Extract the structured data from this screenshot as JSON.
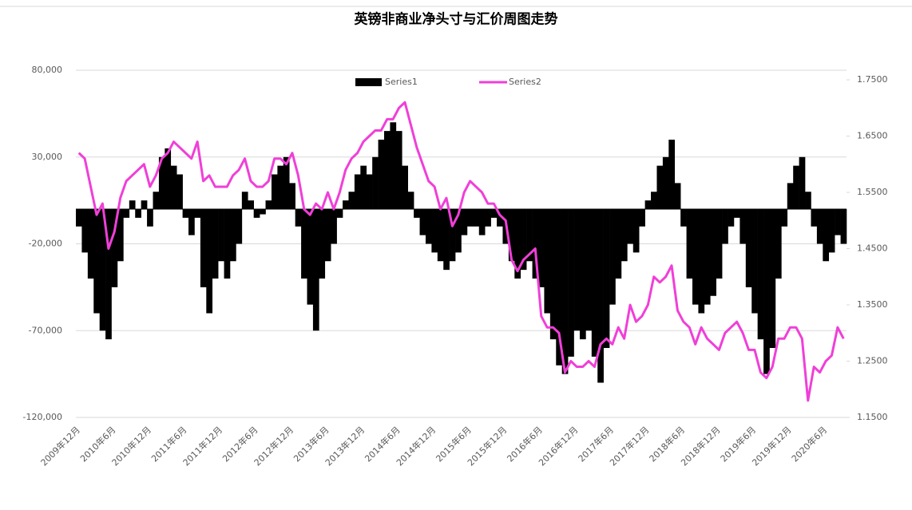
{
  "chart_data": {
    "type": "bar",
    "title": "英镑非商业净头寸与汇价周图走势",
    "categories": [
      "2009年12月",
      null,
      null,
      null,
      null,
      null,
      "2010年6月",
      null,
      null,
      null,
      null,
      null,
      "2010年12月",
      null,
      null,
      null,
      null,
      null,
      "2011年6月",
      null,
      null,
      null,
      null,
      null,
      "2011年12月",
      null,
      null,
      null,
      null,
      null,
      "2012年6月",
      null,
      null,
      null,
      null,
      null,
      "2012年12月",
      null,
      null,
      null,
      null,
      null,
      "2013年6月",
      null,
      null,
      null,
      null,
      null,
      "2013年12月",
      null,
      null,
      null,
      null,
      null,
      "2014年6月",
      null,
      null,
      null,
      null,
      null,
      "2014年12月",
      null,
      null,
      null,
      null,
      null,
      "2015年6月",
      null,
      null,
      null,
      null,
      null,
      "2015年12月",
      null,
      null,
      null,
      null,
      null,
      "2016年6月",
      null,
      null,
      null,
      null,
      null,
      "2016年12月",
      null,
      null,
      null,
      null,
      null,
      "2017年6月",
      null,
      null,
      null,
      null,
      null,
      "2017年12月",
      null,
      null,
      null,
      null,
      null,
      "2018年6月",
      null,
      null,
      null,
      null,
      null,
      "2018年12月",
      null,
      null,
      null,
      null,
      null,
      "2019年6月",
      null,
      null,
      null,
      null,
      null,
      "2019年12月",
      null,
      null,
      null,
      null,
      null,
      "2020年6月",
      null,
      null,
      null
    ],
    "series": [
      {
        "name": "Series1",
        "type": "bar",
        "color": "#000000",
        "values": [
          -10000,
          -25000,
          -40000,
          -60000,
          -70000,
          -75000,
          -45000,
          -30000,
          -5000,
          5000,
          -5000,
          5000,
          -10000,
          10000,
          30000,
          35000,
          25000,
          20000,
          -5000,
          -15000,
          -5000,
          -45000,
          -60000,
          -40000,
          -30000,
          -40000,
          -30000,
          -20000,
          10000,
          5000,
          -5000,
          -3000,
          5000,
          20000,
          25000,
          30000,
          15000,
          -10000,
          -40000,
          -55000,
          -70000,
          -40000,
          -30000,
          -20000,
          -5000,
          5000,
          10000,
          20000,
          25000,
          20000,
          30000,
          40000,
          45000,
          50000,
          45000,
          25000,
          10000,
          -5000,
          -15000,
          -20000,
          -25000,
          -30000,
          -35000,
          -30000,
          -25000,
          -15000,
          -10000,
          -10000,
          -15000,
          -10000,
          -5000,
          -10000,
          -20000,
          -30000,
          -40000,
          -35000,
          -30000,
          -40000,
          -45000,
          -60000,
          -75000,
          -90000,
          -95000,
          -85000,
          -70000,
          -75000,
          -70000,
          -85000,
          -100000,
          -80000,
          -55000,
          -40000,
          -30000,
          -20000,
          -25000,
          -10000,
          5000,
          10000,
          25000,
          30000,
          40000,
          15000,
          -10000,
          -40000,
          -55000,
          -60000,
          -55000,
          -50000,
          -40000,
          -20000,
          -10000,
          -5000,
          -20000,
          -45000,
          -60000,
          -75000,
          -95000,
          -80000,
          -40000,
          -10000,
          15000,
          25000,
          30000,
          10000,
          -10000,
          -20000,
          -30000,
          -25000,
          -15000,
          -20000
        ]
      },
      {
        "name": "Series2",
        "type": "line",
        "axis": "y2",
        "color": "#f03fd8",
        "values": [
          1.62,
          1.61,
          1.56,
          1.51,
          1.53,
          1.45,
          1.48,
          1.54,
          1.57,
          1.58,
          1.59,
          1.6,
          1.56,
          1.58,
          1.61,
          1.62,
          1.64,
          1.63,
          1.62,
          1.61,
          1.64,
          1.57,
          1.58,
          1.56,
          1.56,
          1.56,
          1.58,
          1.59,
          1.61,
          1.57,
          1.56,
          1.56,
          1.57,
          1.61,
          1.61,
          1.6,
          1.62,
          1.58,
          1.52,
          1.51,
          1.53,
          1.52,
          1.55,
          1.52,
          1.55,
          1.59,
          1.61,
          1.62,
          1.64,
          1.65,
          1.66,
          1.66,
          1.68,
          1.68,
          1.7,
          1.71,
          1.67,
          1.63,
          1.6,
          1.57,
          1.56,
          1.52,
          1.54,
          1.49,
          1.51,
          1.55,
          1.57,
          1.56,
          1.55,
          1.53,
          1.53,
          1.51,
          1.5,
          1.43,
          1.41,
          1.43,
          1.44,
          1.45,
          1.33,
          1.31,
          1.31,
          1.3,
          1.23,
          1.25,
          1.24,
          1.24,
          1.25,
          1.24,
          1.28,
          1.29,
          1.28,
          1.31,
          1.29,
          1.35,
          1.32,
          1.33,
          1.35,
          1.4,
          1.39,
          1.4,
          1.42,
          1.34,
          1.32,
          1.31,
          1.28,
          1.31,
          1.29,
          1.28,
          1.27,
          1.3,
          1.31,
          1.32,
          1.3,
          1.27,
          1.27,
          1.23,
          1.22,
          1.24,
          1.29,
          1.29,
          1.31,
          1.31,
          1.29,
          1.18,
          1.24,
          1.23,
          1.25,
          1.26,
          1.31,
          1.29
        ]
      }
    ],
    "ylim": [
      -120000,
      80000
    ],
    "yticks": [
      {
        "value": -120000,
        "label": "-120,000"
      },
      {
        "value": -70000,
        "label": "-70,000"
      },
      {
        "value": -20000,
        "label": "-20,000"
      },
      {
        "value": 30000,
        "label": "30,000"
      },
      {
        "value": 80000,
        "label": "80,000"
      }
    ],
    "y2lim": [
      1.15,
      1.767
    ],
    "y2ticks": [
      {
        "value": 1.15,
        "label": "1.1500"
      },
      {
        "value": 1.25,
        "label": "1.2500"
      },
      {
        "value": 1.35,
        "label": "1.3500"
      },
      {
        "value": 1.45,
        "label": "1.4500"
      },
      {
        "value": 1.55,
        "label": "1.5500"
      },
      {
        "value": 1.65,
        "label": "1.6500"
      },
      {
        "value": 1.75,
        "label": "1.7500"
      }
    ],
    "grid": true,
    "legend": "top"
  }
}
